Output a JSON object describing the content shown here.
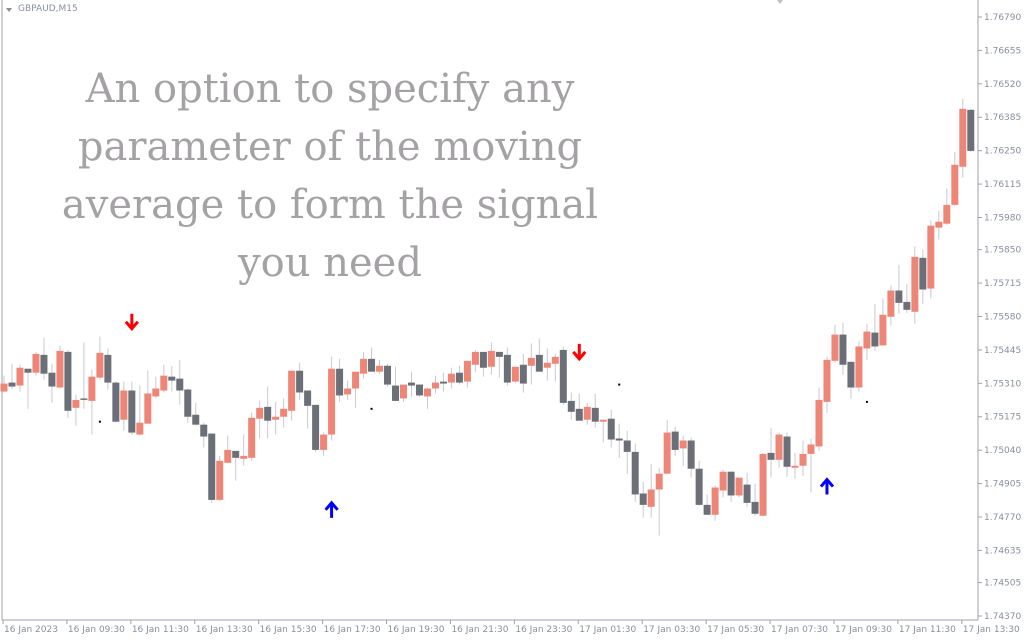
{
  "header": {
    "symbol": "GBPAUD,M15"
  },
  "overlay_text": [
    "An option to specify any",
    "parameter of the moving",
    "average to form the signal",
    "you need"
  ],
  "colors": {
    "bull": "#ee8677",
    "bear": "#6b6f77",
    "wick": "#c8c9d2",
    "buy_arrow": "#0000ff",
    "sell_arrow": "#ff0000",
    "axis": "#a0a0a8",
    "dot": "#000000"
  },
  "chart_data": {
    "type": "candlestick",
    "title": "",
    "ylim": [
      1.7437,
      1.7679
    ],
    "grid": false,
    "y_ticks": [
      "1.76790",
      "1.76655",
      "1.76520",
      "1.76385",
      "1.76250",
      "1.76115",
      "1.75980",
      "1.75850",
      "1.75715",
      "1.75580",
      "1.75445",
      "1.75310",
      "1.75175",
      "1.75040",
      "1.74905",
      "1.74770",
      "1.74635",
      "1.74505",
      "1.74370"
    ],
    "x_labels": [
      "16 Jan 2023",
      "16 Jan 09:30",
      "16 Jan 11:30",
      "16 Jan 13:30",
      "16 Jan 15:30",
      "16 Jan 17:30",
      "16 Jan 19:30",
      "16 Jan 21:30",
      "16 Jan 23:30",
      "17 Jan 01:30",
      "17 Jan 03:30",
      "17 Jan 05:30",
      "17 Jan 07:30",
      "17 Jan 09:30",
      "17 Jan 11:30",
      "17 Jan 13:30"
    ],
    "x_label_every": 8,
    "ohlc_columns": [
      "open",
      "high",
      "low",
      "close"
    ],
    "ohlc": [
      [
        1.75277,
        1.75341,
        1.75273,
        1.75309
      ],
      [
        1.75313,
        1.75389,
        1.75289,
        1.75297
      ],
      [
        1.75301,
        1.75385,
        1.75277,
        1.75373
      ],
      [
        1.75369,
        1.75369,
        1.75207,
        1.75353
      ],
      [
        1.75353,
        1.75437,
        1.75341,
        1.75429
      ],
      [
        1.75425,
        1.75495,
        1.75325,
        1.75349
      ],
      [
        1.75353,
        1.75389,
        1.75231,
        1.75297
      ],
      [
        1.75293,
        1.75463,
        1.75289,
        1.75441
      ],
      [
        1.75437,
        1.75445,
        1.75171,
        1.75199
      ],
      [
        1.75211,
        1.75265,
        1.75139,
        1.75243
      ],
      [
        1.75249,
        1.75475,
        1.75207,
        1.75243
      ],
      [
        1.75239,
        1.75365,
        1.75103,
        1.75337
      ],
      [
        1.75333,
        1.75499,
        1.75325,
        1.75433
      ],
      [
        1.75425,
        1.75451,
        1.75285,
        1.75313
      ],
      [
        1.75313,
        1.75317,
        1.75151,
        1.75155
      ],
      [
        1.75163,
        1.75317,
        1.75119,
        1.75281
      ],
      [
        1.75281,
        1.75317,
        1.75103,
        1.75111
      ],
      [
        1.75103,
        1.75301,
        1.75099,
        1.75151
      ],
      [
        1.75147,
        1.75361,
        1.75147,
        1.75269
      ],
      [
        1.75257,
        1.75337,
        1.75249,
        1.75289
      ],
      [
        1.75281,
        1.75385,
        1.75273,
        1.75341
      ],
      [
        1.75337,
        1.75381,
        1.75277,
        1.75321
      ],
      [
        1.75329,
        1.75405,
        1.75223,
        1.75281
      ],
      [
        1.75285,
        1.75289,
        1.75151,
        1.75175
      ],
      [
        1.75183,
        1.75231,
        1.75139,
        1.75143
      ],
      [
        1.75143,
        1.75151,
        1.75051,
        1.75095
      ],
      [
        1.75107,
        1.75107,
        1.74827,
        1.74839
      ],
      [
        1.74839,
        1.75017,
        1.74835,
        1.74997
      ],
      [
        1.74989,
        1.75099,
        1.74989,
        1.75041
      ],
      [
        1.75037,
        1.75037,
        1.74917,
        1.75009
      ],
      [
        1.75005,
        1.75103,
        1.74977,
        1.75017
      ],
      [
        1.75009,
        1.75191,
        1.74997,
        1.75171
      ],
      [
        1.75167,
        1.75239,
        1.75087,
        1.75211
      ],
      [
        1.75215,
        1.75297,
        1.75087,
        1.75159
      ],
      [
        1.75163,
        1.75235,
        1.75103,
        1.75175
      ],
      [
        1.75175,
        1.75249,
        1.75131,
        1.75207
      ],
      [
        1.75199,
        1.75361,
        1.75159,
        1.75361
      ],
      [
        1.75361,
        1.75393,
        1.75243,
        1.75273
      ],
      [
        1.75281,
        1.75281,
        1.75127,
        1.75219
      ],
      [
        1.75223,
        1.75223,
        1.75033,
        1.75041
      ],
      [
        1.75041,
        1.75111,
        1.75017,
        1.75103
      ],
      [
        1.75103,
        1.75417,
        1.75079,
        1.75369
      ],
      [
        1.75369,
        1.75409,
        1.75235,
        1.75261
      ],
      [
        1.75265,
        1.75321,
        1.75243,
        1.75289
      ],
      [
        1.75289,
        1.75357,
        1.75211,
        1.75357
      ],
      [
        1.75349,
        1.75437,
        1.75329,
        1.75409
      ],
      [
        1.75409,
        1.75455,
        1.75357,
        1.75357
      ],
      [
        1.75357,
        1.75405,
        1.75349,
        1.75381
      ],
      [
        1.75381,
        1.75389,
        1.75297,
        1.75305
      ],
      [
        1.75301,
        1.75377,
        1.75239,
        1.75239
      ],
      [
        1.75249,
        1.75305,
        1.75235,
        1.75305
      ],
      [
        1.75313,
        1.75357,
        1.75257,
        1.75301
      ],
      [
        1.75305,
        1.75305,
        1.75257,
        1.75261
      ],
      [
        1.75257,
        1.75293,
        1.75207,
        1.75289
      ],
      [
        1.75289,
        1.75341,
        1.75269,
        1.75313
      ],
      [
        1.75317,
        1.75353,
        1.75277,
        1.75309
      ],
      [
        1.75313,
        1.75373,
        1.75289,
        1.75349
      ],
      [
        1.75353,
        1.75381,
        1.75305,
        1.75313
      ],
      [
        1.75317,
        1.75401,
        1.75293,
        1.75401
      ],
      [
        1.75385,
        1.75445,
        1.75357,
        1.75437
      ],
      [
        1.75437,
        1.75437,
        1.75337,
        1.75373
      ],
      [
        1.75377,
        1.75475,
        1.75345,
        1.75441
      ],
      [
        1.75437,
        1.75437,
        1.75333,
        1.75417
      ],
      [
        1.75425,
        1.75455,
        1.75301,
        1.75313
      ],
      [
        1.75317,
        1.75377,
        1.75313,
        1.75377
      ],
      [
        1.75385,
        1.75429,
        1.75273,
        1.75309
      ],
      [
        1.75381,
        1.75471,
        1.75305,
        1.75413
      ],
      [
        1.75425,
        1.75491,
        1.75357,
        1.75357
      ],
      [
        1.75373,
        1.75451,
        1.75321,
        1.75393
      ],
      [
        1.75389,
        1.75429,
        1.75317,
        1.75417
      ],
      [
        1.75445,
        1.75459,
        1.75223,
        1.75231
      ],
      [
        1.75239,
        1.75273,
        1.75163,
        1.75195
      ],
      [
        1.75207,
        1.75269,
        1.75159,
        1.75159
      ],
      [
        1.75163,
        1.75231,
        1.75143,
        1.75215
      ],
      [
        1.75211,
        1.75269,
        1.75131,
        1.75155
      ],
      [
        1.75155,
        1.75163,
        1.75071,
        1.75163
      ],
      [
        1.75167,
        1.75203,
        1.75051,
        1.75083
      ],
      [
        1.75087,
        1.75147,
        1.75009,
        1.75079
      ],
      [
        1.75079,
        1.75119,
        1.74945,
        1.75033
      ],
      [
        1.75033,
        1.75067,
        1.74831,
        1.74861
      ],
      [
        1.74865,
        1.74913,
        1.74767,
        1.74819
      ],
      [
        1.74811,
        1.74985,
        1.74767,
        1.74881
      ],
      [
        1.74881,
        1.74969,
        1.74695,
        1.74945
      ],
      [
        1.74945,
        1.75163,
        1.74945,
        1.75111
      ],
      [
        1.75115,
        1.75135,
        1.75017,
        1.75041
      ],
      [
        1.75047,
        1.75099,
        1.74977,
        1.75079
      ],
      [
        1.75079,
        1.75091,
        1.74929,
        1.74965
      ],
      [
        1.74965,
        1.74997,
        1.74815,
        1.74819
      ],
      [
        1.74819,
        1.74861,
        1.74779,
        1.74779
      ],
      [
        1.74779,
        1.74897,
        1.74755,
        1.74889
      ],
      [
        1.74877,
        1.74961,
        1.74849,
        1.74953
      ],
      [
        1.74953,
        1.74953,
        1.74831,
        1.74857
      ],
      [
        1.74857,
        1.74929,
        1.74849,
        1.74929
      ],
      [
        1.74901,
        1.74949,
        1.74811,
        1.74827
      ],
      [
        1.74831,
        1.74905,
        1.74775,
        1.74783
      ],
      [
        1.74775,
        1.75029,
        1.74771,
        1.75025
      ],
      [
        1.75029,
        1.75131,
        1.74929,
        1.75001
      ],
      [
        1.75001,
        1.75111,
        1.74969,
        1.75103
      ],
      [
        1.75095,
        1.75111,
        1.74933,
        1.74973
      ],
      [
        1.74969,
        1.75029,
        1.74925,
        1.74977
      ],
      [
        1.74977,
        1.75079,
        1.74937,
        1.75025
      ],
      [
        1.75025,
        1.75087,
        1.74869,
        1.75063
      ],
      [
        1.75055,
        1.75293,
        1.75037,
        1.75243
      ],
      [
        1.75235,
        1.75417,
        1.75191,
        1.75405
      ],
      [
        1.75401,
        1.75547,
        1.75393,
        1.75507
      ],
      [
        1.75507,
        1.75555,
        1.75345,
        1.75385
      ],
      [
        1.75397,
        1.75397,
        1.75249,
        1.75293
      ],
      [
        1.75293,
        1.75479,
        1.75277,
        1.75459
      ],
      [
        1.75451,
        1.75551,
        1.75405,
        1.75519
      ],
      [
        1.75515,
        1.75631,
        1.75441,
        1.75459
      ],
      [
        1.75463,
        1.75653,
        1.75463,
        1.75587
      ],
      [
        1.75579,
        1.75705,
        1.75543,
        1.75685
      ],
      [
        1.75685,
        1.75789,
        1.75591,
        1.75635
      ],
      [
        1.75639,
        1.75713,
        1.75595,
        1.75607
      ],
      [
        1.75599,
        1.75863,
        1.75551,
        1.75821
      ],
      [
        1.75817,
        1.75849,
        1.75631,
        1.75689
      ],
      [
        1.75693,
        1.75967,
        1.75653,
        1.75947
      ],
      [
        1.75939,
        1.76007,
        1.75891,
        1.75963
      ],
      [
        1.75955,
        1.76097,
        1.75951,
        1.76031
      ],
      [
        1.76031,
        1.76245,
        1.76027,
        1.76193
      ],
      [
        1.76185,
        1.76459,
        1.76141,
        1.76419
      ],
      [
        1.76415,
        1.76419,
        1.76245,
        1.76249
      ]
    ],
    "signals": [
      {
        "index": 16,
        "type": "sell",
        "price": 1.75559
      },
      {
        "index": 72,
        "type": "sell",
        "price": 1.75437
      },
      {
        "index": 41,
        "type": "buy",
        "price": 1.74799
      },
      {
        "index": 103,
        "type": "buy",
        "price": 1.74893
      }
    ],
    "dots": [
      {
        "index": 12,
        "price": 1.75155
      },
      {
        "index": 46,
        "price": 1.75207
      },
      {
        "index": 77,
        "price": 1.75305
      },
      {
        "index": 108,
        "price": 1.75235
      }
    ]
  }
}
